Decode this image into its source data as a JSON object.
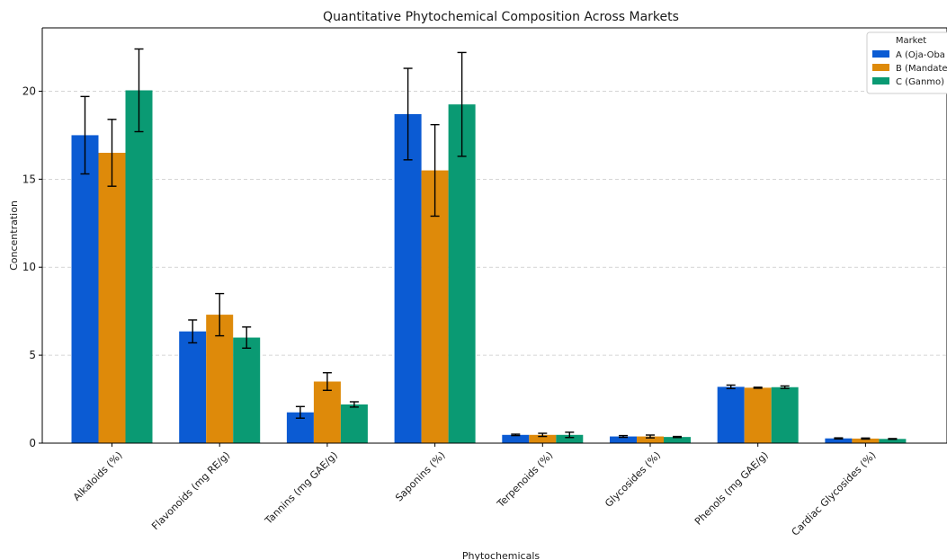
{
  "chart_data": {
    "type": "bar",
    "title": "Quantitative Phytochemical Composition Across Markets",
    "xlabel": "Phytochemicals",
    "ylabel": "Concentration",
    "ylim": [
      0,
      23.6
    ],
    "yticks": [
      "0",
      "5",
      "10",
      "15",
      "20"
    ],
    "ytick_values": [
      0,
      5,
      10,
      15,
      20
    ],
    "grid": "y-dashed",
    "legend_title": "Market",
    "legend_position": "top-right",
    "categories": [
      "Alkaloids (%)",
      "Flavonoids (mg RE/g)",
      "Tannins (mg GAE/g)",
      "Saponins (%)",
      "Terpenoids (%)",
      "Glycosides (%)",
      "Phenols (mg GAE/g)",
      "Cardiac Glycosides (%)"
    ],
    "series": [
      {
        "name": "A (Oja-Oba",
        "color": "#0b5bd3",
        "values": [
          17.5,
          6.35,
          1.75,
          18.7,
          0.47,
          0.38,
          3.2,
          0.27
        ],
        "errors": [
          2.2,
          0.65,
          0.33,
          2.6,
          0.04,
          0.05,
          0.1,
          0.03
        ]
      },
      {
        "name": "B (Mandate",
        "color": "#de8a0a",
        "values": [
          16.5,
          7.3,
          3.5,
          15.5,
          0.47,
          0.38,
          3.15,
          0.26
        ],
        "errors": [
          1.9,
          1.2,
          0.5,
          2.6,
          0.09,
          0.08,
          0.03,
          0.03
        ]
      },
      {
        "name": "C (Ganmo)",
        "color": "#0a9a73",
        "values": [
          20.05,
          6.0,
          2.2,
          19.25,
          0.47,
          0.35,
          3.18,
          0.24
        ],
        "errors": [
          2.35,
          0.6,
          0.15,
          2.95,
          0.15,
          0.03,
          0.07,
          0.02
        ]
      }
    ]
  }
}
